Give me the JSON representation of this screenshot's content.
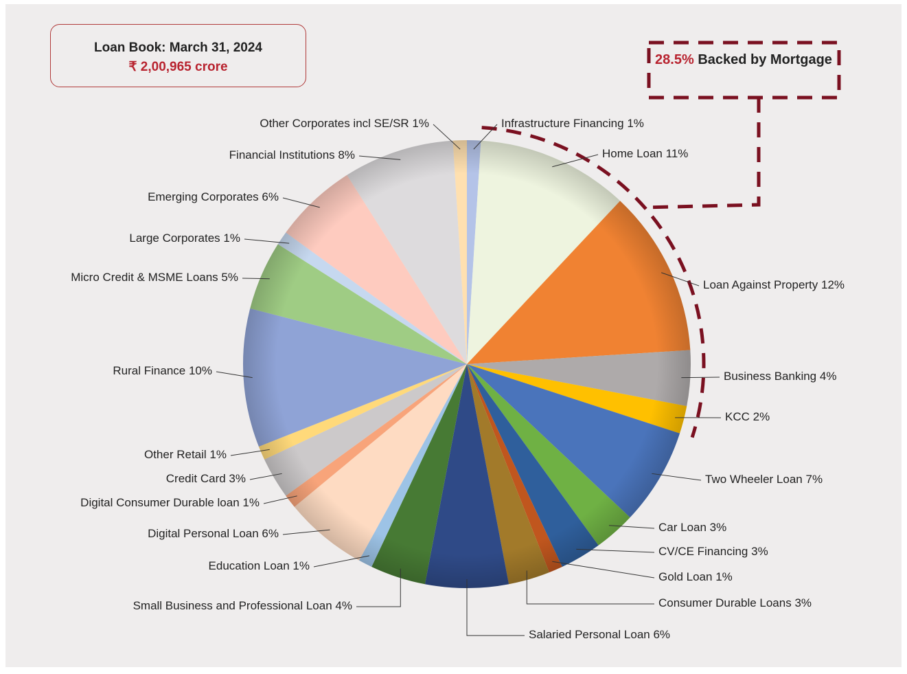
{
  "chart_data": {
    "type": "pie",
    "title": "Loan Book: March 31, 2024",
    "subtitle": "₹ 2,00,965 crore",
    "annotation": {
      "highlight": "28.5%",
      "text": "Backed by Mortgage"
    },
    "categories": [
      "Infrastructure Financing",
      "Home Loan",
      "Loan Against Property",
      "Business Banking",
      "KCC",
      "Two Wheeler Loan",
      "Car Loan",
      "CV/CE Financing",
      "Gold Loan",
      "Consumer Durable Loans",
      "Salaried Personal Loan",
      "Small Business and Professional Loan",
      "Education Loan",
      "Digital Personal Loan",
      "Digital Consumer Durable loan",
      "Credit Card",
      "Other Retail",
      "Rural Finance",
      "Micro Credit & MSME Loans",
      "Large Corporates",
      "Emerging Corporates",
      "Financial Institutions",
      "Other Corporates incl SE/SR"
    ],
    "values": [
      1,
      11,
      12,
      4,
      2,
      7,
      3,
      3,
      1,
      3,
      6,
      4,
      1,
      6,
      1,
      3,
      1,
      10,
      5,
      1,
      6,
      8,
      1
    ],
    "value_labels": [
      "1%",
      "11%",
      "12%",
      "4%",
      "2%",
      "7%",
      "3%",
      "3%",
      "1%",
      "3%",
      "6%",
      "4%",
      "1%",
      "6%",
      "1%",
      "3%",
      "1%",
      "10%",
      "5%",
      "1%",
      "6%",
      "8%",
      "1%"
    ],
    "colors": [
      "#b4c3e8",
      "#eef4df",
      "#f08232",
      "#aeaaaa",
      "#ffc000",
      "#4a74bb",
      "#6fb144",
      "#2f5f9c",
      "#c0561e",
      "#a27a2a",
      "#2f4a87",
      "#477a34",
      "#9dc3e6",
      "#fedbc2",
      "#f8a47a",
      "#ccc9ca",
      "#ffd97a",
      "#8fa3d6",
      "#9fcc84",
      "#c6d8ef",
      "#fecbbf",
      "#dddbdd",
      "#ffe0b0"
    ]
  }
}
